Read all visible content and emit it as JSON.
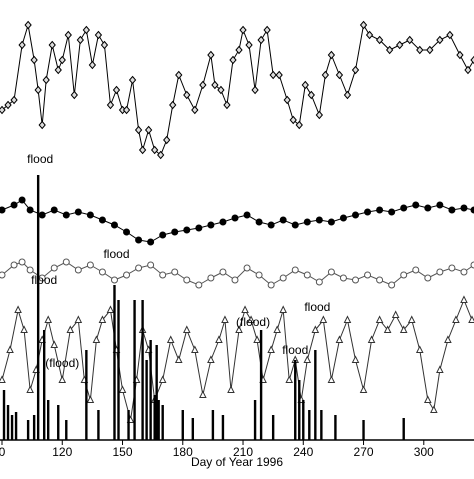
{
  "chart_data": {
    "type": "line",
    "xlabel": "Day of Year 1996",
    "xlim": [
      89,
      325
    ],
    "ylim": [
      0,
      440
    ],
    "xticks": [
      {
        "value": 90,
        "label": "0"
      },
      120,
      150,
      180,
      210,
      240,
      270,
      300
    ],
    "series": [
      {
        "type": "line",
        "marker": "diamond",
        "color": "#000000",
        "x": [
          90,
          93,
          96,
          100,
          103,
          106,
          108,
          110,
          112,
          115,
          118,
          120,
          123,
          126,
          129,
          132,
          135,
          138,
          141,
          144,
          147,
          150,
          152,
          155,
          158,
          160,
          163,
          166,
          169,
          172,
          175,
          178,
          182,
          186,
          190,
          194,
          196,
          199,
          202,
          205,
          208,
          210,
          213,
          216,
          219,
          222,
          225,
          228,
          232,
          235,
          238,
          241,
          244,
          248,
          251,
          254,
          258,
          262,
          266,
          270,
          273,
          278,
          283,
          288,
          293,
          298,
          303,
          308,
          313,
          318,
          322,
          325
        ],
        "values": [
          330,
          335,
          340,
          395,
          415,
          380,
          350,
          315,
          360,
          395,
          370,
          380,
          405,
          345,
          400,
          410,
          375,
          405,
          395,
          335,
          350,
          330,
          330,
          360,
          310,
          290,
          310,
          290,
          285,
          300,
          335,
          365,
          345,
          330,
          355,
          385,
          355,
          350,
          335,
          380,
          390,
          410,
          395,
          350,
          400,
          410,
          365,
          365,
          340,
          320,
          315,
          355,
          345,
          325,
          365,
          385,
          365,
          345,
          370,
          415,
          405,
          400,
          390,
          395,
          400,
          390,
          390,
          400,
          405,
          385,
          370,
          380
        ]
      },
      {
        "type": "line",
        "marker": "filled-circle",
        "color": "#000000",
        "x": [
          90,
          96,
          100,
          104,
          110,
          116,
          122,
          128,
          134,
          140,
          146,
          152,
          158,
          164,
          170,
          176,
          182,
          188,
          194,
          200,
          206,
          212,
          218,
          224,
          230,
          236,
          242,
          248,
          254,
          260,
          266,
          272,
          278,
          284,
          290,
          296,
          302,
          308,
          314,
          320,
          325
        ],
        "values": [
          230,
          235,
          240,
          230,
          225,
          230,
          225,
          228,
          225,
          220,
          215,
          208,
          200,
          198,
          205,
          208,
          210,
          212,
          215,
          218,
          222,
          225,
          218,
          215,
          220,
          215,
          218,
          220,
          218,
          222,
          225,
          228,
          230,
          228,
          232,
          235,
          232,
          235,
          230,
          232,
          230
        ]
      },
      {
        "type": "line",
        "marker": "open-circle",
        "color": "#555555",
        "x": [
          90,
          96,
          100,
          104,
          110,
          116,
          122,
          128,
          134,
          140,
          146,
          152,
          158,
          164,
          170,
          176,
          182,
          188,
          194,
          200,
          206,
          212,
          218,
          224,
          230,
          236,
          242,
          248,
          254,
          260,
          266,
          272,
          278,
          284,
          290,
          296,
          302,
          308,
          314,
          320,
          325
        ],
        "values": [
          165,
          175,
          178,
          170,
          162,
          172,
          178,
          170,
          175,
          168,
          160,
          165,
          172,
          175,
          165,
          168,
          160,
          155,
          162,
          168,
          160,
          172,
          165,
          155,
          162,
          170,
          165,
          158,
          168,
          162,
          160,
          165,
          160,
          155,
          165,
          170,
          162,
          168,
          172,
          168,
          175
        ]
      },
      {
        "type": "line",
        "marker": "triangle",
        "color": "#333333",
        "x": [
          90,
          94,
          98,
          101,
          104,
          107,
          110,
          113,
          116,
          120,
          124,
          128,
          131,
          134,
          137,
          140,
          144,
          147,
          150,
          154,
          157,
          160,
          163,
          166,
          170,
          174,
          178,
          182,
          186,
          190,
          194,
          198,
          201,
          204,
          208,
          211,
          214,
          217,
          220,
          224,
          227,
          230,
          233,
          236,
          239,
          242,
          246,
          250,
          254,
          258,
          262,
          266,
          270,
          274,
          278,
          282,
          286,
          290,
          294,
          298,
          302,
          305,
          308,
          312,
          316,
          320,
          324
        ],
        "values": [
          60,
          90,
          130,
          110,
          50,
          70,
          100,
          120,
          95,
          60,
          110,
          120,
          60,
          40,
          100,
          120,
          130,
          90,
          50,
          20,
          60,
          110,
          90,
          40,
          60,
          100,
          80,
          110,
          90,
          45,
          80,
          100,
          120,
          50,
          110,
          130,
          120,
          100,
          60,
          90,
          110,
          130,
          60,
          80,
          40,
          80,
          110,
          120,
          60,
          100,
          120,
          80,
          50,
          100,
          120,
          110,
          125,
          110,
          120,
          90,
          40,
          30,
          70,
          100,
          120,
          140,
          120
        ]
      },
      {
        "type": "bar",
        "color": "#000000",
        "x": [
          91,
          93,
          95,
          97,
          103,
          106,
          108,
          111,
          113,
          118,
          122,
          132,
          138,
          146,
          148,
          153,
          156,
          160,
          162,
          164,
          166,
          167,
          168,
          170,
          180,
          185,
          195,
          200,
          216,
          219,
          225,
          236,
          238,
          240,
          243,
          246,
          249,
          256,
          270,
          290
        ],
        "values": [
          50,
          35,
          25,
          28,
          20,
          25,
          265,
          110,
          40,
          35,
          20,
          90,
          30,
          155,
          140,
          30,
          140,
          140,
          80,
          100,
          45,
          95,
          40,
          35,
          30,
          22,
          30,
          25,
          40,
          110,
          25,
          80,
          60,
          40,
          30,
          90,
          30,
          25,
          20,
          22
        ]
      }
    ],
    "annotations": [
      {
        "text": "flood",
        "x": 109,
        "y": 277
      },
      {
        "text": "flood",
        "x": 147,
        "y": 182
      },
      {
        "text": "flood",
        "x": 111,
        "y": 156
      },
      {
        "text": "(flood)",
        "x": 120,
        "y": 73
      },
      {
        "text": "(flood)",
        "x": 215,
        "y": 114
      },
      {
        "text": "flood",
        "x": 247,
        "y": 129
      },
      {
        "text": "flood",
        "x": 236,
        "y": 86
      }
    ]
  }
}
